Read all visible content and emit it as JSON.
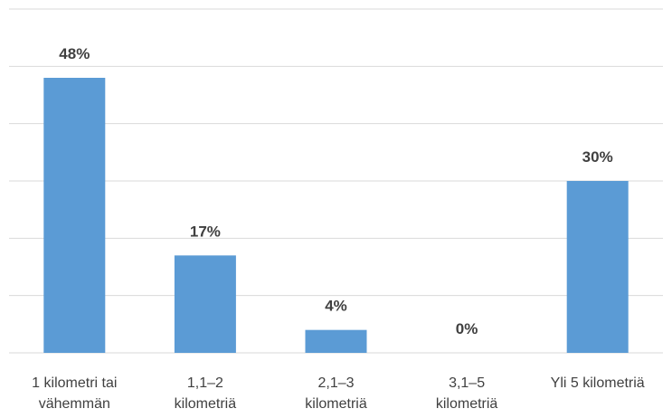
{
  "chart_data": {
    "type": "bar",
    "categories": [
      [
        "1 kilometri tai",
        "vähemmän"
      ],
      [
        "1,1–2",
        "kilometriä"
      ],
      [
        "2,1–3",
        "kilometriä"
      ],
      [
        "3,1–5",
        "kilometriä"
      ],
      [
        "Yli 5 kilometriä"
      ]
    ],
    "values": [
      48,
      17,
      4,
      0,
      30
    ],
    "data_labels": [
      "48%",
      "17%",
      "4%",
      "0%",
      "30%"
    ],
    "ylim": [
      0,
      60
    ],
    "y_unit": "%",
    "grid": true,
    "gridline_step": 10,
    "bar_color": "#5b9bd5",
    "title": "",
    "xlabel": "",
    "ylabel": ""
  }
}
